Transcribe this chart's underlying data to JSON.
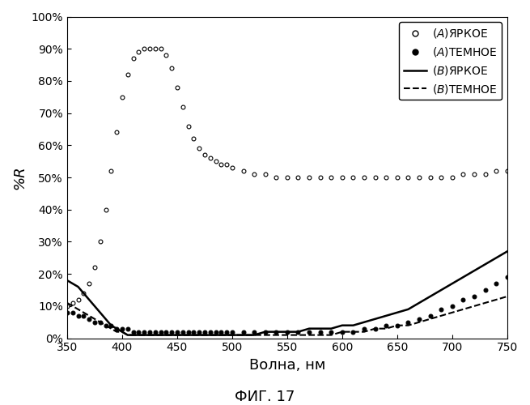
{
  "title": "ФИГ. 17",
  "xlabel": "Волна, нм",
  "ylabel": "%R",
  "xlim": [
    350,
    750
  ],
  "ylim": [
    0,
    1.0
  ],
  "yticks": [
    0.0,
    0.1,
    0.2,
    0.3,
    0.4,
    0.5,
    0.6,
    0.7,
    0.8,
    0.9,
    1.0
  ],
  "xticks": [
    350,
    400,
    450,
    500,
    550,
    600,
    650,
    700,
    750
  ],
  "legend": [
    {
      "label": "(A)ЯРКОЕ",
      "marker": "o",
      "linestyle": "none",
      "color": "#000000",
      "markersize": 4,
      "markerfacecolor": "white"
    },
    {
      "label": "(A)ТЕМНОЕ",
      "marker": "o",
      "linestyle": "none",
      "color": "#000000",
      "markersize": 4,
      "markerfacecolor": "black"
    },
    {
      "label": "(B)ЯРКОЕ",
      "marker": "none",
      "linestyle": "solid",
      "color": "#000000",
      "linewidth": 1.5
    },
    {
      "label": "(B)ТЕМНОЕ",
      "marker": "none",
      "linestyle": "dashed",
      "color": "#000000",
      "linewidth": 1.5
    }
  ],
  "curve_A_bright_x": [
    350,
    355,
    360,
    365,
    370,
    375,
    380,
    385,
    390,
    395,
    400,
    405,
    410,
    415,
    420,
    425,
    430,
    435,
    440,
    445,
    450,
    455,
    460,
    465,
    470,
    475,
    480,
    485,
    490,
    495,
    500,
    510,
    520,
    530,
    540,
    550,
    560,
    570,
    580,
    590,
    600,
    610,
    620,
    630,
    640,
    650,
    660,
    670,
    680,
    690,
    700,
    710,
    720,
    730,
    740,
    750
  ],
  "curve_A_bright_y": [
    0.1,
    0.11,
    0.12,
    0.14,
    0.17,
    0.22,
    0.3,
    0.4,
    0.52,
    0.64,
    0.75,
    0.82,
    0.87,
    0.89,
    0.9,
    0.9,
    0.9,
    0.9,
    0.88,
    0.84,
    0.78,
    0.72,
    0.66,
    0.62,
    0.59,
    0.57,
    0.56,
    0.55,
    0.54,
    0.54,
    0.53,
    0.52,
    0.51,
    0.51,
    0.5,
    0.5,
    0.5,
    0.5,
    0.5,
    0.5,
    0.5,
    0.5,
    0.5,
    0.5,
    0.5,
    0.5,
    0.5,
    0.5,
    0.5,
    0.5,
    0.5,
    0.51,
    0.51,
    0.51,
    0.52,
    0.52
  ],
  "curve_A_dark_x": [
    350,
    355,
    360,
    365,
    370,
    375,
    380,
    385,
    390,
    395,
    400,
    405,
    410,
    415,
    420,
    425,
    430,
    435,
    440,
    445,
    450,
    455,
    460,
    465,
    470,
    475,
    480,
    485,
    490,
    495,
    500,
    510,
    520,
    530,
    540,
    550,
    560,
    570,
    580,
    590,
    600,
    610,
    620,
    630,
    640,
    650,
    660,
    670,
    680,
    690,
    700,
    710,
    720,
    730,
    740,
    750
  ],
  "curve_A_dark_y": [
    0.08,
    0.08,
    0.07,
    0.07,
    0.06,
    0.05,
    0.05,
    0.04,
    0.04,
    0.03,
    0.03,
    0.03,
    0.02,
    0.02,
    0.02,
    0.02,
    0.02,
    0.02,
    0.02,
    0.02,
    0.02,
    0.02,
    0.02,
    0.02,
    0.02,
    0.02,
    0.02,
    0.02,
    0.02,
    0.02,
    0.02,
    0.02,
    0.02,
    0.02,
    0.02,
    0.02,
    0.02,
    0.02,
    0.02,
    0.02,
    0.02,
    0.02,
    0.03,
    0.03,
    0.04,
    0.04,
    0.05,
    0.06,
    0.07,
    0.09,
    0.1,
    0.12,
    0.13,
    0.15,
    0.17,
    0.19
  ],
  "curve_B_bright_x": [
    350,
    355,
    360,
    365,
    370,
    375,
    380,
    385,
    390,
    395,
    400,
    405,
    410,
    415,
    420,
    425,
    430,
    435,
    440,
    445,
    450,
    455,
    460,
    465,
    470,
    475,
    480,
    490,
    500,
    510,
    520,
    530,
    540,
    550,
    560,
    570,
    580,
    590,
    600,
    610,
    620,
    630,
    640,
    650,
    660,
    670,
    680,
    690,
    700,
    710,
    720,
    730,
    740,
    750
  ],
  "curve_B_bright_y": [
    0.18,
    0.17,
    0.16,
    0.14,
    0.12,
    0.1,
    0.08,
    0.06,
    0.04,
    0.03,
    0.02,
    0.01,
    0.01,
    0.01,
    0.01,
    0.01,
    0.01,
    0.01,
    0.01,
    0.01,
    0.01,
    0.01,
    0.01,
    0.01,
    0.01,
    0.01,
    0.01,
    0.01,
    0.01,
    0.01,
    0.01,
    0.02,
    0.02,
    0.02,
    0.02,
    0.03,
    0.03,
    0.03,
    0.04,
    0.04,
    0.05,
    0.06,
    0.07,
    0.08,
    0.09,
    0.11,
    0.13,
    0.15,
    0.17,
    0.19,
    0.21,
    0.23,
    0.25,
    0.27
  ],
  "curve_B_dark_x": [
    350,
    355,
    360,
    365,
    370,
    375,
    380,
    385,
    390,
    395,
    400,
    405,
    410,
    415,
    420,
    425,
    430,
    435,
    440,
    445,
    450,
    455,
    460,
    465,
    470,
    475,
    480,
    490,
    500,
    510,
    520,
    530,
    540,
    550,
    560,
    570,
    580,
    590,
    600,
    610,
    620,
    630,
    640,
    650,
    660,
    670,
    680,
    690,
    700,
    710,
    720,
    730,
    740,
    750
  ],
  "curve_B_dark_y": [
    0.11,
    0.1,
    0.09,
    0.08,
    0.07,
    0.06,
    0.05,
    0.04,
    0.03,
    0.02,
    0.02,
    0.01,
    0.01,
    0.01,
    0.01,
    0.01,
    0.01,
    0.01,
    0.01,
    0.01,
    0.01,
    0.01,
    0.01,
    0.01,
    0.01,
    0.01,
    0.01,
    0.01,
    0.01,
    0.01,
    0.01,
    0.01,
    0.01,
    0.01,
    0.01,
    0.01,
    0.01,
    0.01,
    0.02,
    0.02,
    0.02,
    0.03,
    0.03,
    0.04,
    0.04,
    0.05,
    0.06,
    0.07,
    0.08,
    0.09,
    0.1,
    0.11,
    0.12,
    0.13
  ]
}
